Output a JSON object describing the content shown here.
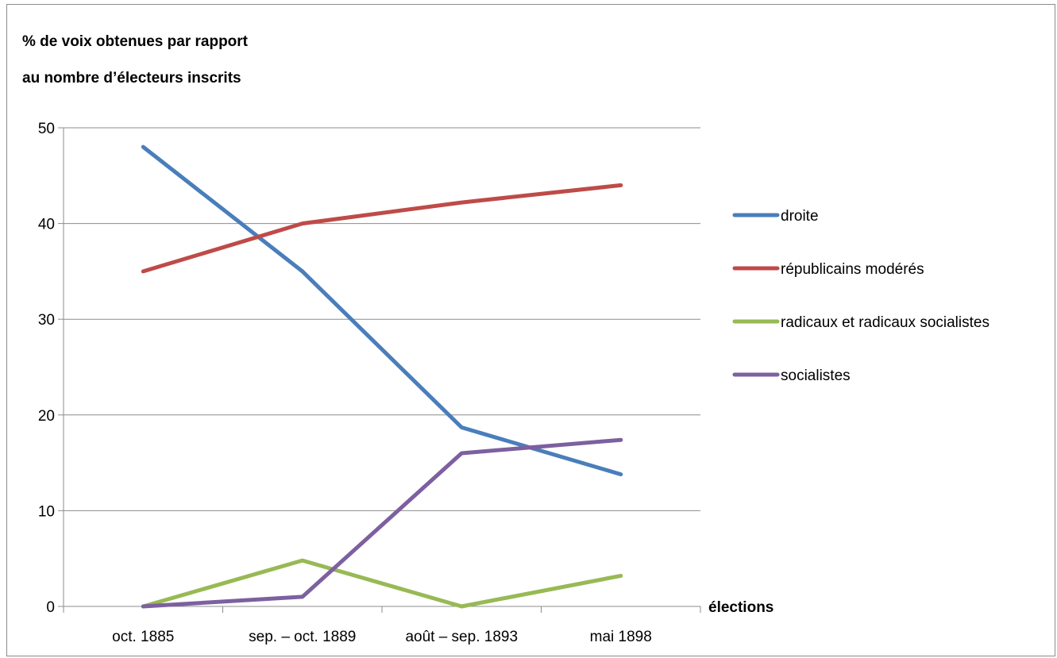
{
  "chart_data": {
    "type": "line",
    "ylabel_line1": "% de voix obtenues par rapport",
    "ylabel_line2": "au nombre d’électeurs inscrits",
    "xlabel": "élections",
    "categories": [
      "oct. 1885",
      "sep. – oct. 1889",
      "août – sep. 1893",
      "mai 1898"
    ],
    "ylim": [
      0,
      50
    ],
    "yticks": [
      0,
      10,
      20,
      30,
      40,
      50
    ],
    "grid": true,
    "legend_position": "right",
    "series": [
      {
        "name": "droite",
        "color": "#4a7ebb",
        "values": [
          48,
          35,
          18.7,
          13.8
        ]
      },
      {
        "name": "républicains modérés",
        "color": "#be4b48",
        "values": [
          35,
          40,
          42.2,
          44
        ]
      },
      {
        "name": "radicaux et radicaux socialistes",
        "color": "#98b954",
        "values": [
          0,
          4.8,
          0,
          3.2
        ]
      },
      {
        "name": "socialistes",
        "color": "#7d60a0",
        "values": [
          0,
          1,
          16,
          17.4
        ]
      }
    ]
  }
}
